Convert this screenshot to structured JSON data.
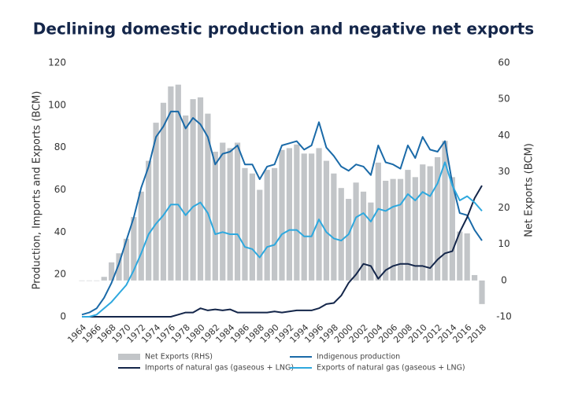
{
  "chart_data": {
    "type": "combo",
    "title": "Declining domestic production and negative net exports",
    "y_label": "Production, Imports and Exports (BCM)",
    "y2_label": "Net Exports (BCM)",
    "categories": [
      "1964",
      null,
      "1966",
      null,
      "1968",
      null,
      "1970",
      null,
      "1972",
      null,
      "1974",
      null,
      "1976",
      null,
      "1978",
      null,
      "1980",
      null,
      "1982",
      null,
      "1984",
      null,
      "1986",
      null,
      "1988",
      null,
      "1990",
      null,
      "1992",
      null,
      "1994",
      null,
      "1996",
      null,
      "1998",
      null,
      "2000",
      null,
      "2002",
      null,
      "2004",
      null,
      "2006",
      null,
      "2008",
      null,
      "2010",
      null,
      "2012",
      null,
      "2014",
      null,
      "2016",
      null,
      "2018"
    ],
    "ylim": [
      0,
      120
    ],
    "yticks": [
      0,
      20,
      40,
      60,
      80,
      100,
      120
    ],
    "y2lim": [
      -10,
      60
    ],
    "y2ticks": [
      -10,
      0,
      10,
      20,
      30,
      40,
      50,
      60
    ],
    "series": [
      {
        "name": "Net Exports (RHS)",
        "type": "bar",
        "axis": "y2",
        "color": "#c2c5c8",
        "values": [
          0,
          0,
          0,
          1,
          5,
          7.5,
          11.5,
          17.5,
          24.5,
          33,
          43.5,
          49,
          53.5,
          54,
          45.5,
          50,
          50.5,
          46,
          35.5,
          38,
          36.5,
          38,
          31,
          29.5,
          25,
          30.5,
          31,
          36,
          36.5,
          37.5,
          35,
          35,
          36.5,
          33,
          29.5,
          25.5,
          22.5,
          27,
          24.5,
          21.5,
          32.5,
          27.5,
          28,
          28,
          30.5,
          28.5,
          32,
          31.5,
          34,
          38.5,
          28.5,
          13.5,
          13,
          1.5,
          -6.5
        ]
      },
      {
        "name": "Indigenous production",
        "type": "line",
        "color": "#1a6aa8",
        "values": [
          1,
          2,
          4,
          9,
          16,
          25,
          36,
          47,
          61,
          71,
          85,
          90,
          97,
          97,
          89,
          94,
          91,
          85,
          72,
          77,
          78,
          81,
          72,
          72,
          65,
          71,
          72,
          81,
          82,
          83,
          79,
          81,
          92,
          80,
          76,
          71,
          69,
          72,
          71,
          67,
          81,
          73,
          72,
          70,
          81,
          75,
          85,
          79,
          78,
          83,
          63,
          49,
          48,
          41,
          36
        ]
      },
      {
        "name": "Imports of natural gas (gaseous + LNG)",
        "type": "line",
        "color": "#14264a",
        "values": [
          0,
          0,
          0,
          0,
          0,
          0,
          0,
          0,
          0,
          0,
          0,
          0,
          0,
          1,
          2,
          2,
          4,
          3,
          3.5,
          3,
          3.5,
          2,
          2,
          2,
          2,
          2,
          2.5,
          2,
          2.5,
          3,
          3,
          3,
          4,
          6,
          6.5,
          10,
          16,
          20,
          25,
          24,
          18,
          22,
          24,
          25,
          25,
          24,
          24,
          23,
          27,
          30,
          31,
          40,
          47,
          56,
          62
        ]
      },
      {
        "name": "Exports of natural gas (gaseous + LNG)",
        "type": "line",
        "color": "#2ea8de",
        "values": [
          0,
          0,
          1,
          4,
          7,
          11,
          15,
          22,
          30,
          39,
          44,
          48,
          53,
          53,
          48,
          52,
          54,
          49,
          39,
          40,
          39,
          39,
          33,
          32,
          28,
          33,
          34,
          39,
          41,
          41,
          38,
          38,
          46,
          40,
          37,
          36,
          39,
          47,
          49,
          45,
          51,
          50,
          52,
          53,
          58,
          55,
          59,
          57,
          63,
          73,
          62,
          55,
          57,
          54,
          50
        ]
      }
    ]
  }
}
